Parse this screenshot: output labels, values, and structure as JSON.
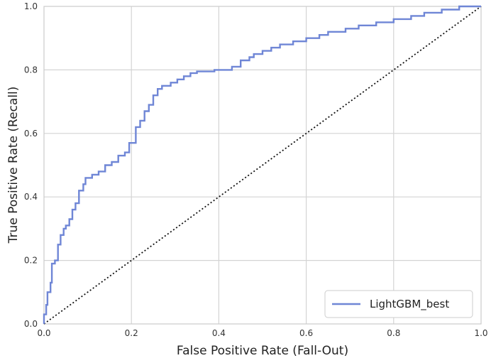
{
  "chart_data": {
    "type": "line",
    "title": "",
    "xlabel": "False Positive Rate (Fall-Out)",
    "ylabel": "True Positive Rate (Recall)",
    "xlim": [
      0,
      1
    ],
    "ylim": [
      0,
      1
    ],
    "xticks": [
      "0.0",
      "0.2",
      "0.4",
      "0.6",
      "0.8",
      "1.0"
    ],
    "yticks": [
      "0.0",
      "0.2",
      "0.4",
      "0.6",
      "0.8",
      "1.0"
    ],
    "grid": true,
    "legend_position": "lower-right",
    "series": [
      {
        "name": "LightGBM_best",
        "color": "#6f86d6",
        "style": "steps",
        "x": [
          0.0,
          0.0,
          0.005,
          0.005,
          0.008,
          0.008,
          0.015,
          0.015,
          0.018,
          0.018,
          0.025,
          0.025,
          0.032,
          0.032,
          0.038,
          0.038,
          0.045,
          0.045,
          0.05,
          0.05,
          0.058,
          0.058,
          0.065,
          0.065,
          0.072,
          0.072,
          0.08,
          0.08,
          0.09,
          0.09,
          0.095,
          0.095,
          0.11,
          0.11,
          0.125,
          0.125,
          0.14,
          0.14,
          0.155,
          0.155,
          0.17,
          0.17,
          0.185,
          0.185,
          0.195,
          0.195,
          0.21,
          0.21,
          0.22,
          0.22,
          0.23,
          0.23,
          0.24,
          0.24,
          0.25,
          0.25,
          0.26,
          0.26,
          0.27,
          0.27,
          0.29,
          0.29,
          0.305,
          0.305,
          0.32,
          0.32,
          0.335,
          0.335,
          0.35,
          0.35,
          0.39,
          0.39,
          0.43,
          0.43,
          0.45,
          0.45,
          0.47,
          0.47,
          0.48,
          0.48,
          0.5,
          0.5,
          0.52,
          0.52,
          0.54,
          0.54,
          0.57,
          0.57,
          0.6,
          0.6,
          0.63,
          0.63,
          0.65,
          0.65,
          0.69,
          0.69,
          0.72,
          0.72,
          0.76,
          0.76,
          0.8,
          0.8,
          0.84,
          0.84,
          0.87,
          0.87,
          0.91,
          0.91,
          0.95,
          0.95,
          0.97,
          1.0
        ],
        "y": [
          0.0,
          0.03,
          0.03,
          0.06,
          0.06,
          0.1,
          0.1,
          0.13,
          0.13,
          0.19,
          0.19,
          0.2,
          0.2,
          0.25,
          0.25,
          0.28,
          0.28,
          0.3,
          0.3,
          0.31,
          0.31,
          0.33,
          0.33,
          0.36,
          0.36,
          0.38,
          0.38,
          0.42,
          0.42,
          0.44,
          0.44,
          0.46,
          0.46,
          0.47,
          0.47,
          0.48,
          0.48,
          0.5,
          0.5,
          0.51,
          0.51,
          0.53,
          0.53,
          0.54,
          0.54,
          0.57,
          0.57,
          0.62,
          0.62,
          0.64,
          0.64,
          0.67,
          0.67,
          0.69,
          0.69,
          0.72,
          0.72,
          0.74,
          0.74,
          0.75,
          0.75,
          0.76,
          0.76,
          0.77,
          0.77,
          0.78,
          0.78,
          0.79,
          0.79,
          0.795,
          0.795,
          0.8,
          0.8,
          0.81,
          0.81,
          0.83,
          0.83,
          0.84,
          0.84,
          0.85,
          0.85,
          0.86,
          0.86,
          0.87,
          0.87,
          0.88,
          0.88,
          0.89,
          0.89,
          0.9,
          0.9,
          0.91,
          0.91,
          0.92,
          0.92,
          0.93,
          0.93,
          0.94,
          0.94,
          0.95,
          0.95,
          0.96,
          0.96,
          0.97,
          0.97,
          0.98,
          0.98,
          0.99,
          0.99,
          1.0,
          1.0,
          1.0
        ]
      },
      {
        "color": "#111111",
        "style": "dotted",
        "x": [
          0,
          1
        ],
        "y": [
          0,
          1
        ]
      }
    ]
  }
}
